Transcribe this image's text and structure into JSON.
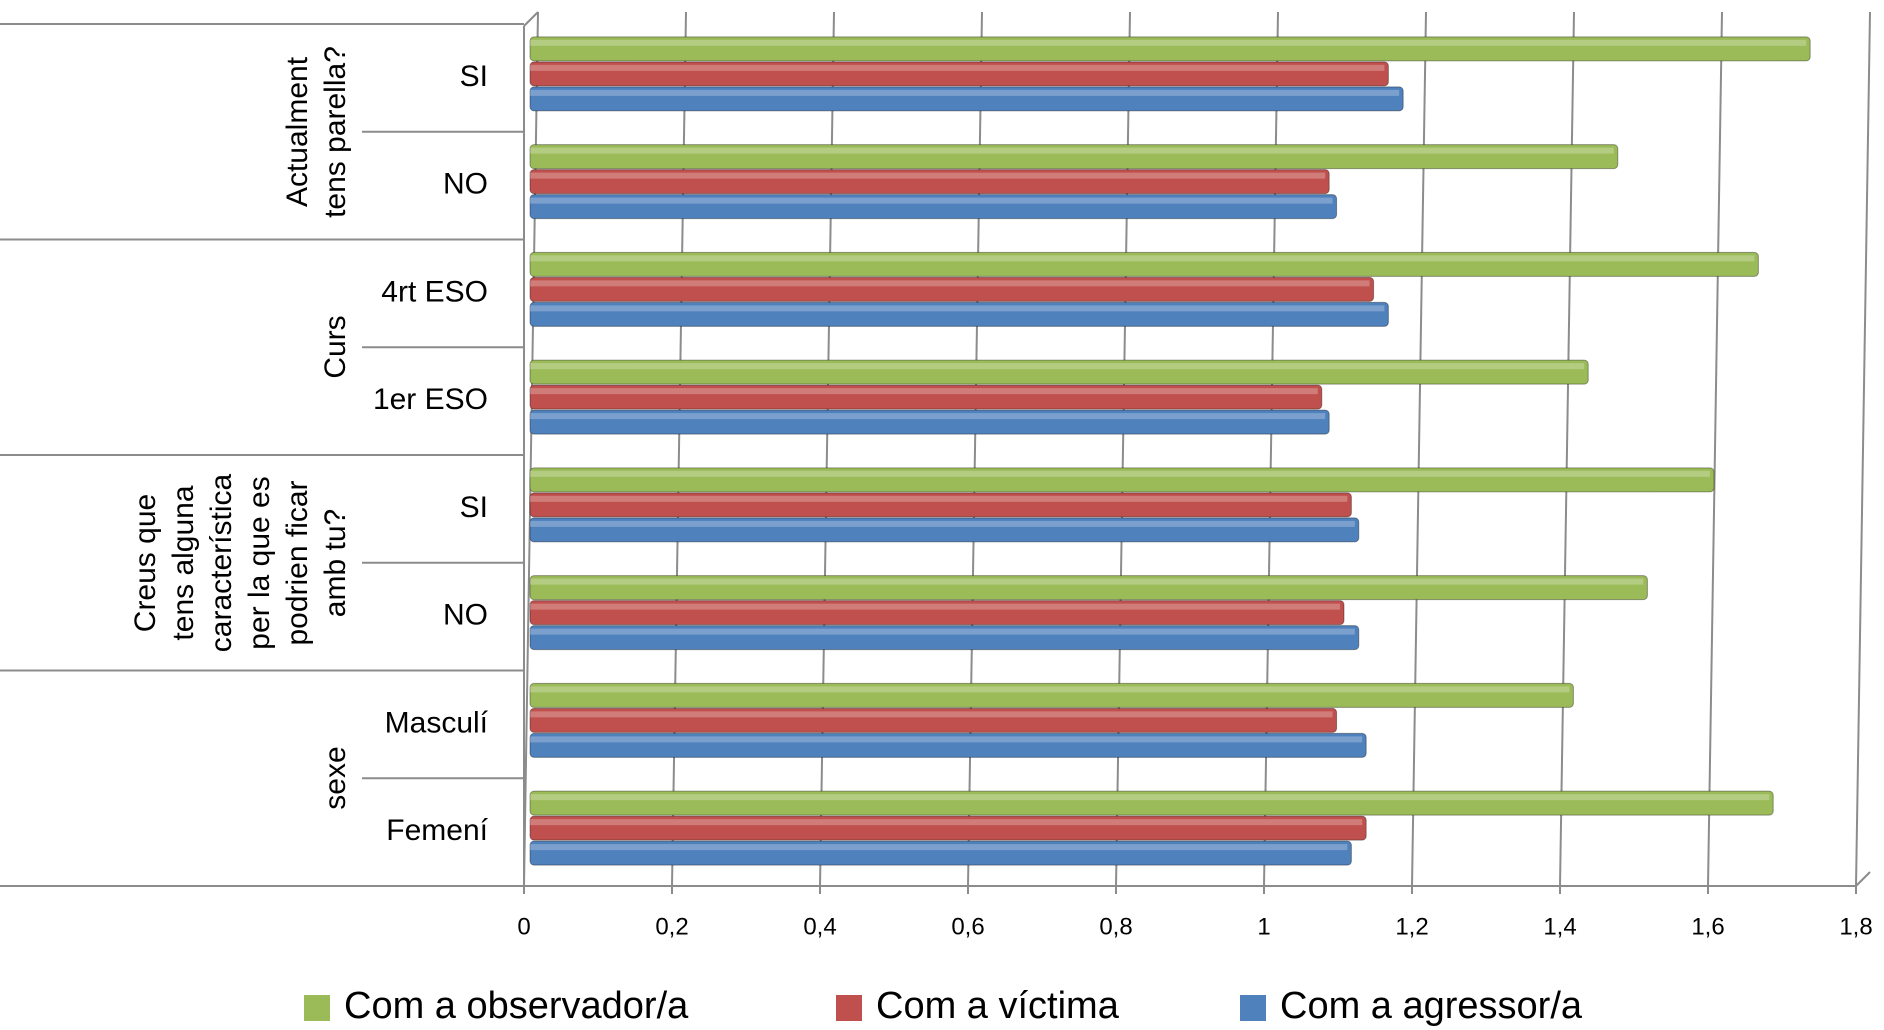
{
  "chart_data": {
    "type": "bar",
    "orientation": "horizontal",
    "groups": [
      {
        "name": "sexe",
        "categories": [
          "Femení",
          "Masculí"
        ]
      },
      {
        "name": "Creus que tens alguna característica per la que es podrien ficar amb tu?",
        "categories": [
          "NO",
          "SI"
        ]
      },
      {
        "name": "Curs",
        "categories": [
          "1er ESO",
          "4rt ESO"
        ]
      },
      {
        "name": "Actualment tens parella?",
        "categories": [
          "NO",
          "SI"
        ]
      }
    ],
    "series": [
      {
        "name": "Com a observador/a",
        "color": "#9bbb59",
        "values": [
          1.68,
          1.41,
          1.51,
          1.6,
          1.43,
          1.66,
          1.47,
          1.73
        ]
      },
      {
        "name": "Com a víctima",
        "color": "#c0504d",
        "values": [
          1.13,
          1.09,
          1.1,
          1.11,
          1.07,
          1.14,
          1.08,
          1.16
        ]
      },
      {
        "name": "Com a agressor/a",
        "color": "#4f81bd",
        "values": [
          1.11,
          1.13,
          1.12,
          1.12,
          1.08,
          1.16,
          1.09,
          1.18
        ]
      }
    ],
    "xlim": [
      0,
      1.8
    ],
    "xticks": [
      0,
      {
        "value": 0.2,
        "label": "0,2"
      },
      {
        "value": 0.4,
        "label": "0,4"
      },
      {
        "value": 0.6,
        "label": "0,6"
      },
      {
        "value": 0.8,
        "label": "0,8"
      },
      1,
      {
        "value": 1.2,
        "label": "1,2"
      },
      {
        "value": 1.4,
        "label": "1,4"
      },
      {
        "value": 1.6,
        "label": "1,6"
      },
      {
        "value": 1.8,
        "label": "1,8"
      }
    ],
    "grid": true,
    "legend": "bottom"
  }
}
